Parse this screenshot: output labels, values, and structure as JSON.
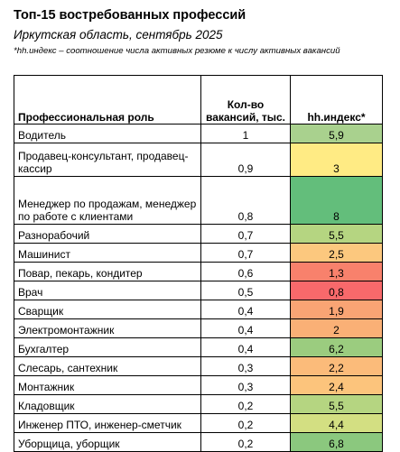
{
  "header": {
    "title": "Топ-15 востребованных профессий",
    "subtitle": "Иркутская область, сентябрь 2025",
    "note": "*hh.индекс – соотношение числа активных резюме к числу активных вакансий"
  },
  "table": {
    "columns": [
      "Профессиональная роль",
      "Кол-во вакансий, тыс.",
      "hh.индекс*"
    ],
    "rows": [
      {
        "role": "Водитель",
        "vacancies": "1",
        "index": "5,9",
        "color": "#a9d18e"
      },
      {
        "role": "Продавец-консультант, продавец-кассир",
        "vacancies": "0,9",
        "index": "3",
        "color": "#ffeb84"
      },
      {
        "role": "Менеджер по продажам, менеджер по работе с клиентами",
        "vacancies": "0,8",
        "index": "8",
        "color": "#63be7b"
      },
      {
        "role": "Разнорабочий",
        "vacancies": "0,7",
        "index": "5,5",
        "color": "#b5d581"
      },
      {
        "role": "Машинист",
        "vacancies": "0,7",
        "index": "2,5",
        "color": "#fcc87e"
      },
      {
        "role": "Повар, пекарь, кондитер",
        "vacancies": "0,6",
        "index": "1,3",
        "color": "#f8816c"
      },
      {
        "role": "Врач",
        "vacancies": "0,5",
        "index": "0,8",
        "color": "#f8696b"
      },
      {
        "role": "Сварщик",
        "vacancies": "0,4",
        "index": "1,9",
        "color": "#f9a474"
      },
      {
        "role": "Электромонтажник",
        "vacancies": "0,4",
        "index": "2",
        "color": "#fab076"
      },
      {
        "role": "Бухгалтер",
        "vacancies": "0,4",
        "index": "6,2",
        "color": "#9bcc7f"
      },
      {
        "role": "Слесарь, сантехник",
        "vacancies": "0,3",
        "index": "2,2",
        "color": "#fbbb7a"
      },
      {
        "role": "Монтажник",
        "vacancies": "0,3",
        "index": "2,4",
        "color": "#fcc47c"
      },
      {
        "role": "Кладовщик",
        "vacancies": "0,2",
        "index": "5,5",
        "color": "#b5d581"
      },
      {
        "role": "Инженер ПТО, инженер-сметчик",
        "vacancies": "0,2",
        "index": "4,4",
        "color": "#d3df82"
      },
      {
        "role": "Уборщица, уборщик",
        "vacancies": "0,2",
        "index": "6,8",
        "color": "#8bc87e"
      }
    ]
  }
}
